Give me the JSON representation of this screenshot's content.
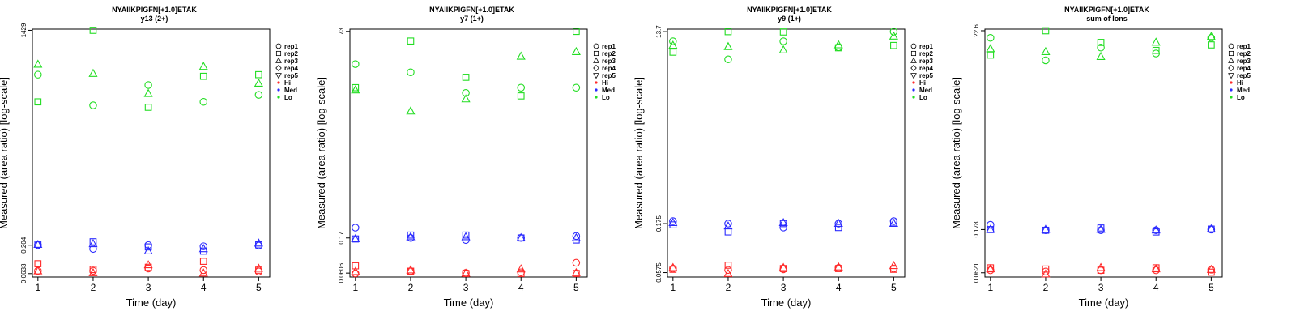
{
  "colors": {
    "Hi": "#ff2a2a",
    "Med": "#2a2aff",
    "Lo": "#22dd22",
    "axis": "#000000"
  },
  "legend": {
    "reps": [
      {
        "label": "rep1",
        "shape": "circle"
      },
      {
        "label": "rep2",
        "shape": "square"
      },
      {
        "label": "rep3",
        "shape": "triangle-up"
      },
      {
        "label": "rep4",
        "shape": "diamond"
      },
      {
        "label": "rep5",
        "shape": "triangle-down"
      }
    ],
    "groups": [
      {
        "label": "Hi",
        "color": "#ff2a2a"
      },
      {
        "label": "Med",
        "color": "#2a2aff"
      },
      {
        "label": "Lo",
        "color": "#22dd22"
      }
    ]
  },
  "chart_data": [
    {
      "type": "scatter",
      "title": "NYAIIKPIGFN[+1.0]ETAK",
      "subtitle": "y13 (2+)",
      "xlabel": "Time (day)",
      "ylabel": "Measured (area ratio) [log-scale]",
      "log_y": true,
      "x_ticks": [
        1,
        2,
        3,
        4,
        5
      ],
      "y_ticks": [
        {
          "value": 0.0633,
          "label": "0.0633"
        },
        {
          "value": 0.204,
          "label": "0.204"
        },
        {
          "value": 1429,
          "label": "1429"
        }
      ],
      "ylim": [
        0.055,
        1500
      ],
      "xlim": [
        0.9,
        5.2
      ],
      "series": [
        {
          "group": "Hi",
          "rep": "rep1",
          "x": [
            1,
            2,
            3,
            4,
            5
          ],
          "y": [
            0.071,
            0.071,
            0.078,
            0.073,
            0.069
          ]
        },
        {
          "group": "Hi",
          "rep": "rep2",
          "x": [
            1,
            2,
            3,
            4,
            5
          ],
          "y": [
            0.095,
            0.075,
            0.082,
            0.105,
            0.073
          ]
        },
        {
          "group": "Hi",
          "rep": "rep3",
          "x": [
            1,
            2,
            3,
            4,
            5
          ],
          "y": [
            0.07,
            0.065,
            0.09,
            0.064,
            0.078
          ]
        },
        {
          "group": "Med",
          "rep": "rep1",
          "x": [
            1,
            2,
            3,
            4,
            5
          ],
          "y": [
            0.205,
            0.175,
            0.205,
            0.195,
            0.2
          ]
        },
        {
          "group": "Med",
          "rep": "rep2",
          "x": [
            1,
            2,
            3,
            4,
            5
          ],
          "y": [
            0.212,
            0.235,
            0.19,
            0.16,
            0.207
          ]
        },
        {
          "group": "Med",
          "rep": "rep3",
          "x": [
            1,
            2,
            3,
            4,
            5
          ],
          "y": [
            0.208,
            0.215,
            0.16,
            0.175,
            0.22
          ]
        },
        {
          "group": "Lo",
          "rep": "rep1",
          "x": [
            1,
            2,
            3,
            4,
            5
          ],
          "y": [
            230,
            65,
            150,
            75,
            100
          ]
        },
        {
          "group": "Lo",
          "rep": "rep2",
          "x": [
            1,
            2,
            3,
            4,
            5
          ],
          "y": [
            75,
            1429,
            60,
            215,
            230
          ]
        },
        {
          "group": "Lo",
          "rep": "rep3",
          "x": [
            1,
            2,
            3,
            4,
            5
          ],
          "y": [
            350,
            240,
            105,
            320,
            160
          ]
        }
      ]
    },
    {
      "type": "scatter",
      "title": "NYAIIKPIGFN[+1.0]ETAK",
      "subtitle": "y7 (1+)",
      "xlabel": "Time (day)",
      "ylabel": "Measured (area ratio) [log-scale]",
      "log_y": true,
      "x_ticks": [
        1,
        2,
        3,
        4,
        5
      ],
      "y_ticks": [
        {
          "value": 0.0606,
          "label": "0.0606"
        },
        {
          "value": 0.17,
          "label": "0.17"
        },
        {
          "value": 73,
          "label": "73"
        }
      ],
      "ylim": [
        0.054,
        78
      ],
      "xlim": [
        0.9,
        5.2
      ],
      "series": [
        {
          "group": "Hi",
          "rep": "rep1",
          "x": [
            1,
            2,
            3,
            4,
            5
          ],
          "y": [
            0.06,
            0.064,
            0.061,
            0.062,
            0.082
          ]
        },
        {
          "group": "Hi",
          "rep": "rep2",
          "x": [
            1,
            2,
            3,
            4,
            5
          ],
          "y": [
            0.075,
            0.064,
            0.06,
            0.06,
            0.06
          ]
        },
        {
          "group": "Hi",
          "rep": "rep3",
          "x": [
            1,
            2,
            3,
            4,
            5
          ],
          "y": [
            0.063,
            0.066,
            0.06,
            0.068,
            0.061
          ]
        },
        {
          "group": "Med",
          "rep": "rep1",
          "x": [
            1,
            2,
            3,
            4,
            5
          ],
          "y": [
            0.23,
            0.17,
            0.16,
            0.17,
            0.18
          ]
        },
        {
          "group": "Med",
          "rep": "rep2",
          "x": [
            1,
            2,
            3,
            4,
            5
          ],
          "y": [
            0.165,
            0.185,
            0.185,
            0.17,
            0.16
          ]
        },
        {
          "group": "Med",
          "rep": "rep3",
          "x": [
            1,
            2,
            3,
            4,
            5
          ],
          "y": [
            0.165,
            0.175,
            0.175,
            0.17,
            0.17
          ]
        },
        {
          "group": "Lo",
          "rep": "rep1",
          "x": [
            1,
            2,
            3,
            4,
            5
          ],
          "y": [
            28,
            22,
            12,
            14,
            14
          ]
        },
        {
          "group": "Lo",
          "rep": "rep2",
          "x": [
            1,
            2,
            3,
            4,
            5
          ],
          "y": [
            14,
            55,
            19,
            11,
            73
          ]
        },
        {
          "group": "Lo",
          "rep": "rep3",
          "x": [
            1,
            2,
            3,
            4,
            5
          ],
          "y": [
            13,
            7,
            10,
            35,
            40
          ]
        }
      ]
    },
    {
      "type": "scatter",
      "title": "NYAIIKPIGFN[+1.0]ETAK",
      "subtitle": "y9 (1+)",
      "xlabel": "Time (day)",
      "ylabel": "Measured (area ratio) [log-scale]",
      "log_y": true,
      "x_ticks": [
        1,
        2,
        3,
        4,
        5
      ],
      "y_ticks": [
        {
          "value": 0.0575,
          "label": "0.0575"
        },
        {
          "value": 0.175,
          "label": "0.175"
        },
        {
          "value": 13.7,
          "label": "13.7"
        }
      ],
      "ylim": [
        0.052,
        14.5
      ],
      "xlim": [
        0.9,
        5.2
      ],
      "series": [
        {
          "group": "Hi",
          "rep": "rep1",
          "x": [
            1,
            2,
            3,
            4,
            5
          ],
          "y": [
            0.063,
            0.061,
            0.062,
            0.064,
            0.063
          ]
        },
        {
          "group": "Hi",
          "rep": "rep2",
          "x": [
            1,
            2,
            3,
            4,
            5
          ],
          "y": [
            0.062,
            0.068,
            0.063,
            0.063,
            0.062
          ]
        },
        {
          "group": "Hi",
          "rep": "rep3",
          "x": [
            1,
            2,
            3,
            4,
            5
          ],
          "y": [
            0.064,
            0.056,
            0.064,
            0.065,
            0.067
          ]
        },
        {
          "group": "Med",
          "rep": "rep1",
          "x": [
            1,
            2,
            3,
            4,
            5
          ],
          "y": [
            0.185,
            0.175,
            0.16,
            0.175,
            0.185
          ]
        },
        {
          "group": "Med",
          "rep": "rep2",
          "x": [
            1,
            2,
            3,
            4,
            5
          ],
          "y": [
            0.17,
            0.145,
            0.175,
            0.16,
            0.178
          ]
        },
        {
          "group": "Med",
          "rep": "rep3",
          "x": [
            1,
            2,
            3,
            4,
            5
          ],
          "y": [
            0.178,
            0.165,
            0.178,
            0.175,
            0.175
          ]
        },
        {
          "group": "Lo",
          "rep": "rep1",
          "x": [
            1,
            2,
            3,
            4,
            5
          ],
          "y": [
            11,
            7.3,
            11,
            9.6,
            13.7
          ]
        },
        {
          "group": "Lo",
          "rep": "rep2",
          "x": [
            1,
            2,
            3,
            4,
            5
          ],
          "y": [
            8.6,
            13.7,
            13.6,
            9.5,
            10
          ]
        },
        {
          "group": "Lo",
          "rep": "rep3",
          "x": [
            1,
            2,
            3,
            4,
            5
          ],
          "y": [
            10,
            9.7,
            9,
            10.1,
            12.3
          ]
        }
      ]
    },
    {
      "type": "scatter",
      "title": "NYAIIKPIGFN[+1.0]ETAK",
      "subtitle": "sum of Ions",
      "xlabel": "Time (day)",
      "ylabel": "Measured (area ratio) [log-scale]",
      "log_y": true,
      "x_ticks": [
        1,
        2,
        3,
        4,
        5
      ],
      "y_ticks": [
        {
          "value": 0.0621,
          "label": "0.0621"
        },
        {
          "value": 0.178,
          "label": "0.178"
        },
        {
          "value": 22.6,
          "label": "22.6"
        }
      ],
      "ylim": [
        0.056,
        23.5
      ],
      "xlim": [
        0.9,
        5.2
      ],
      "series": [
        {
          "group": "Hi",
          "rep": "rep1",
          "x": [
            1,
            2,
            3,
            4,
            5
          ],
          "y": [
            0.066,
            0.064,
            0.066,
            0.066,
            0.067
          ]
        },
        {
          "group": "Hi",
          "rep": "rep2",
          "x": [
            1,
            2,
            3,
            4,
            5
          ],
          "y": [
            0.07,
            0.068,
            0.066,
            0.07,
            0.063
          ]
        },
        {
          "group": "Hi",
          "rep": "rep3",
          "x": [
            1,
            2,
            3,
            4,
            5
          ],
          "y": [
            0.068,
            0.06,
            0.07,
            0.068,
            0.067
          ]
        },
        {
          "group": "Med",
          "rep": "rep1",
          "x": [
            1,
            2,
            3,
            4,
            5
          ],
          "y": [
            0.2,
            0.175,
            0.175,
            0.175,
            0.178
          ]
        },
        {
          "group": "Med",
          "rep": "rep2",
          "x": [
            1,
            2,
            3,
            4,
            5
          ],
          "y": [
            0.178,
            0.175,
            0.185,
            0.168,
            0.18
          ]
        },
        {
          "group": "Med",
          "rep": "rep3",
          "x": [
            1,
            2,
            3,
            4,
            5
          ],
          "y": [
            0.178,
            0.178,
            0.178,
            0.175,
            0.18
          ]
        },
        {
          "group": "Lo",
          "rep": "rep1",
          "x": [
            1,
            2,
            3,
            4,
            5
          ],
          "y": [
            19,
            11,
            15,
            13,
            19
          ]
        },
        {
          "group": "Lo",
          "rep": "rep2",
          "x": [
            1,
            2,
            3,
            4,
            5
          ],
          "y": [
            12.5,
            22.6,
            17,
            14,
            16
          ]
        },
        {
          "group": "Lo",
          "rep": "rep3",
          "x": [
            1,
            2,
            3,
            4,
            5
          ],
          "y": [
            14.5,
            13.5,
            12,
            17,
            19.5
          ]
        }
      ]
    }
  ]
}
